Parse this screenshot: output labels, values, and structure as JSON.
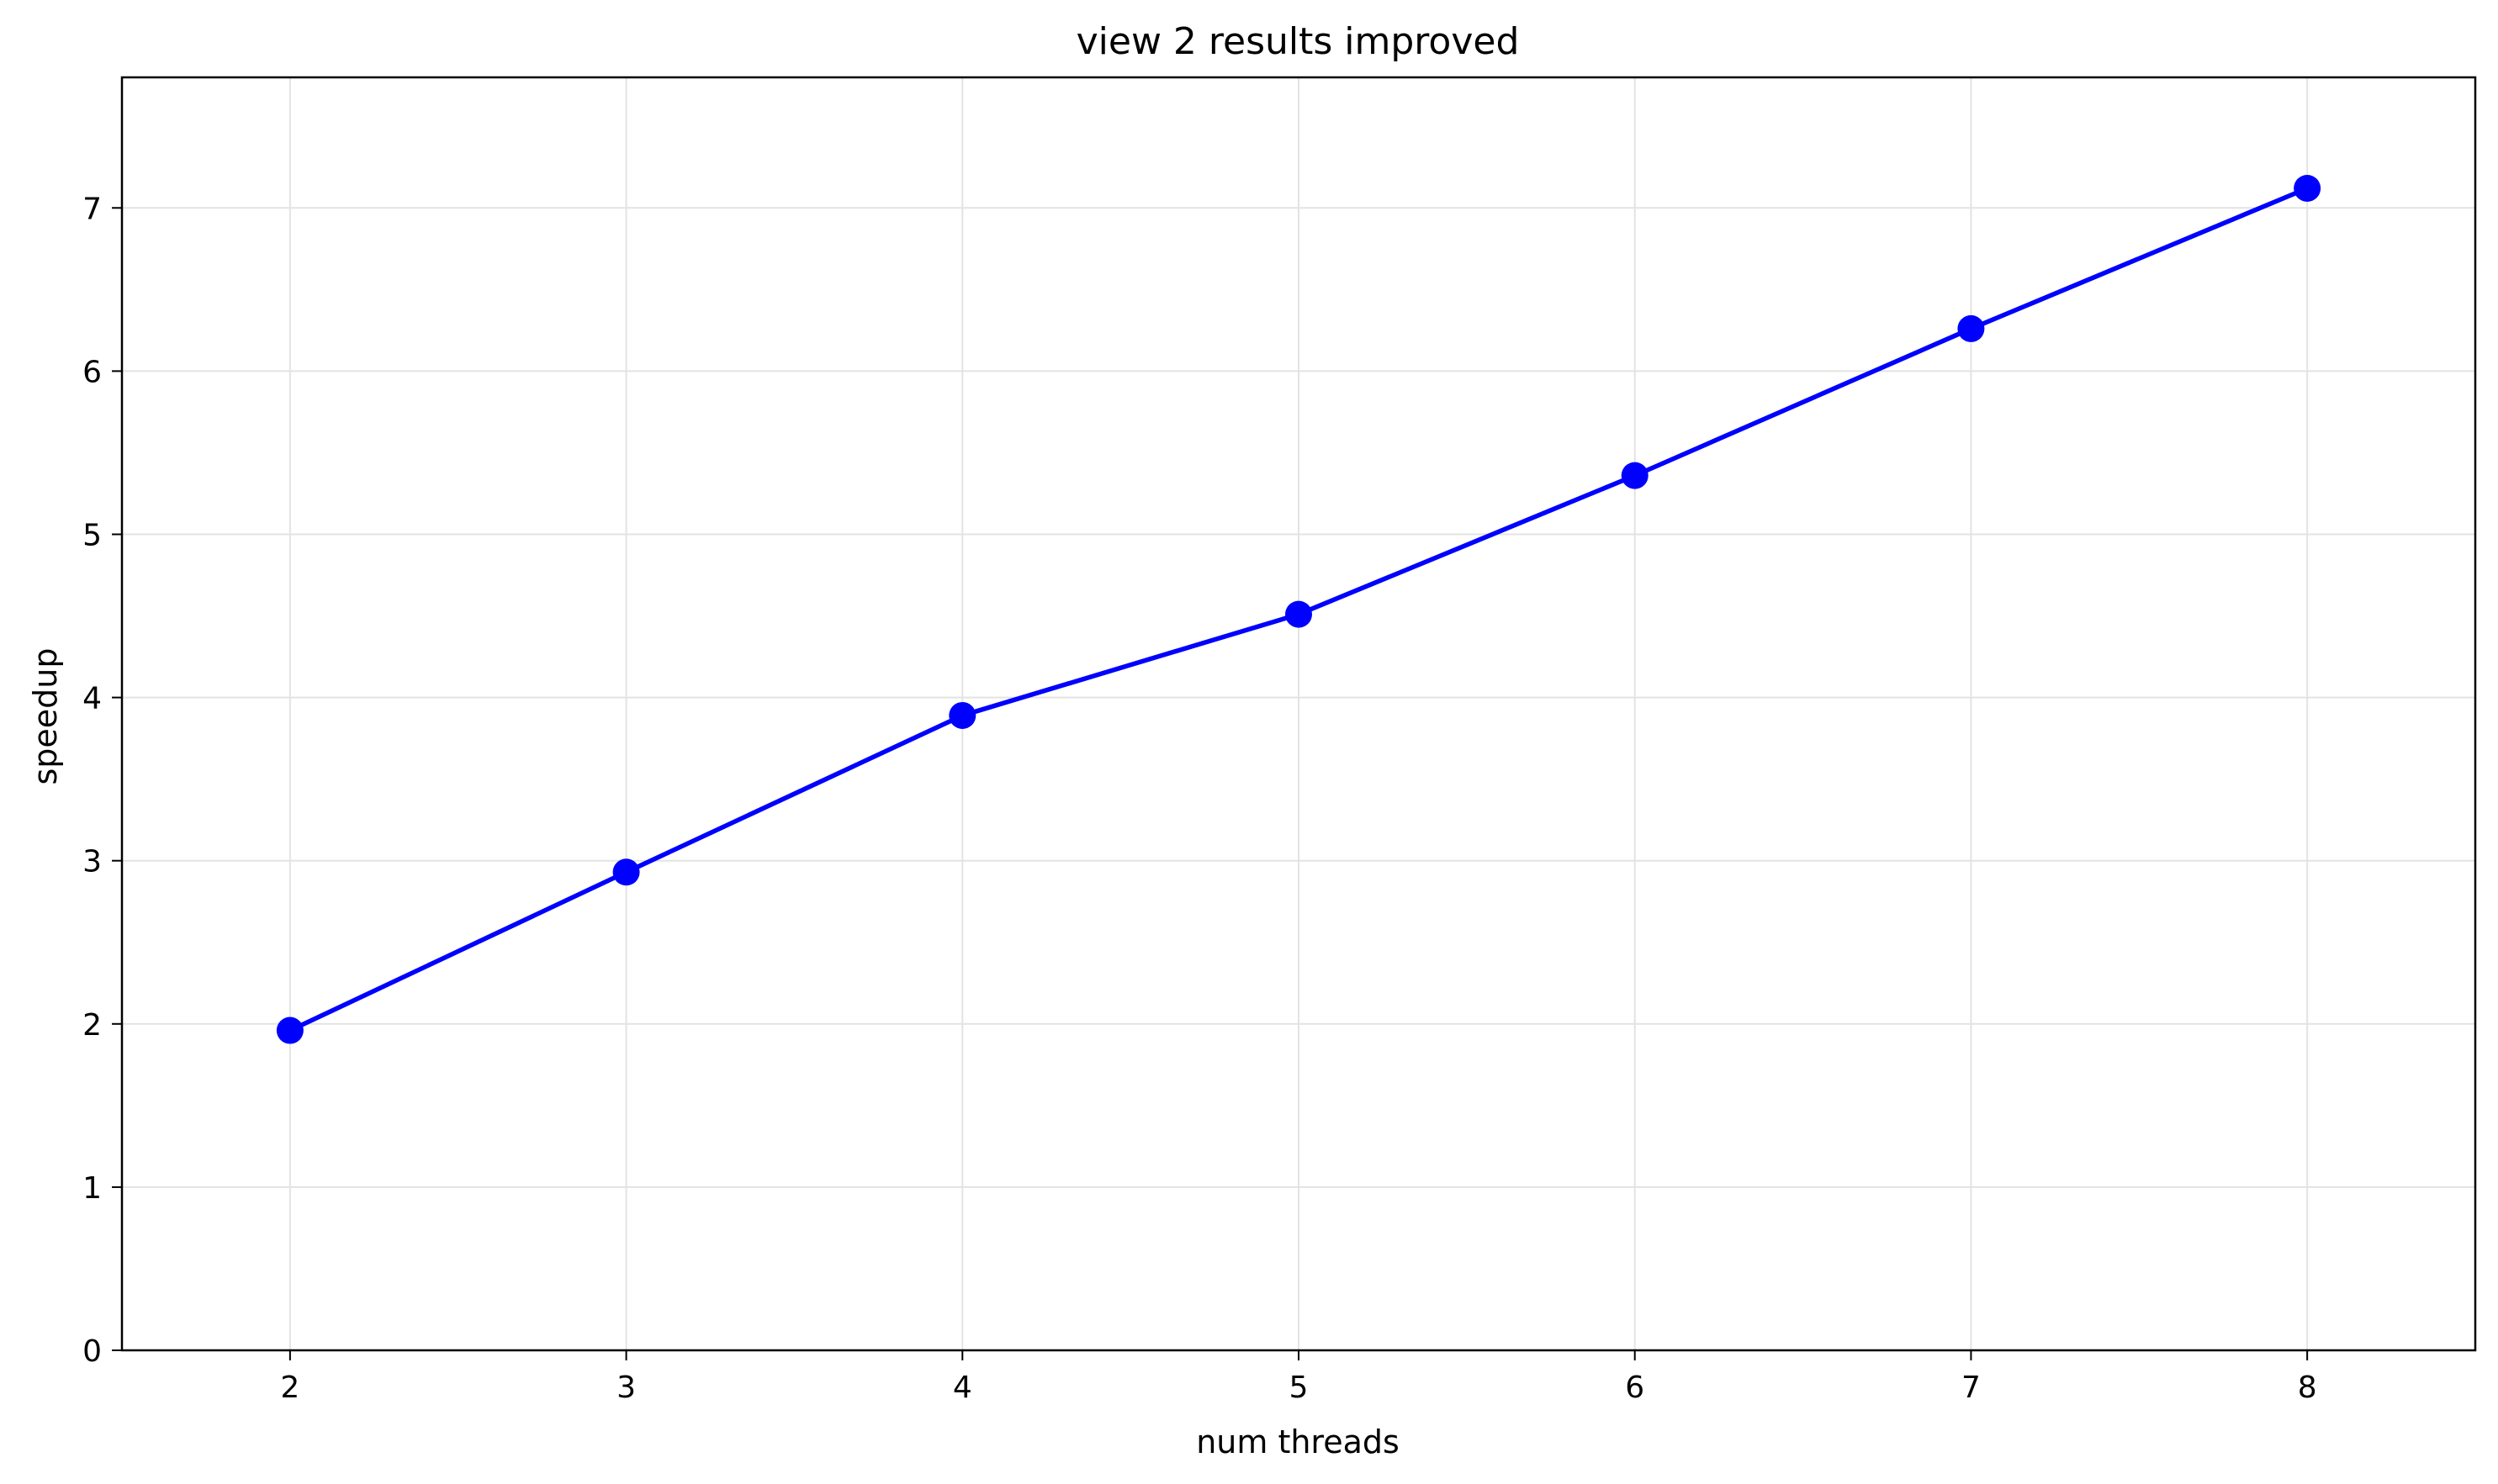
{
  "chart_data": {
    "type": "line",
    "title": "view 2 results improved",
    "xlabel": "num threads",
    "ylabel": "speedup",
    "xlim": [
      1.5,
      8.5
    ],
    "ylim": [
      0,
      7.8
    ],
    "xticks": [
      2,
      3,
      4,
      5,
      6,
      7,
      8
    ],
    "yticks": [
      0,
      1,
      2,
      3,
      4,
      5,
      6,
      7
    ],
    "grid": true,
    "legend": "none",
    "series": [
      {
        "color": "#0000ff",
        "marker": "circle",
        "x": [
          2,
          3,
          4,
          5,
          6,
          7,
          8
        ],
        "y": [
          1.96,
          2.93,
          3.89,
          4.51,
          5.36,
          6.26,
          7.12
        ]
      }
    ]
  }
}
